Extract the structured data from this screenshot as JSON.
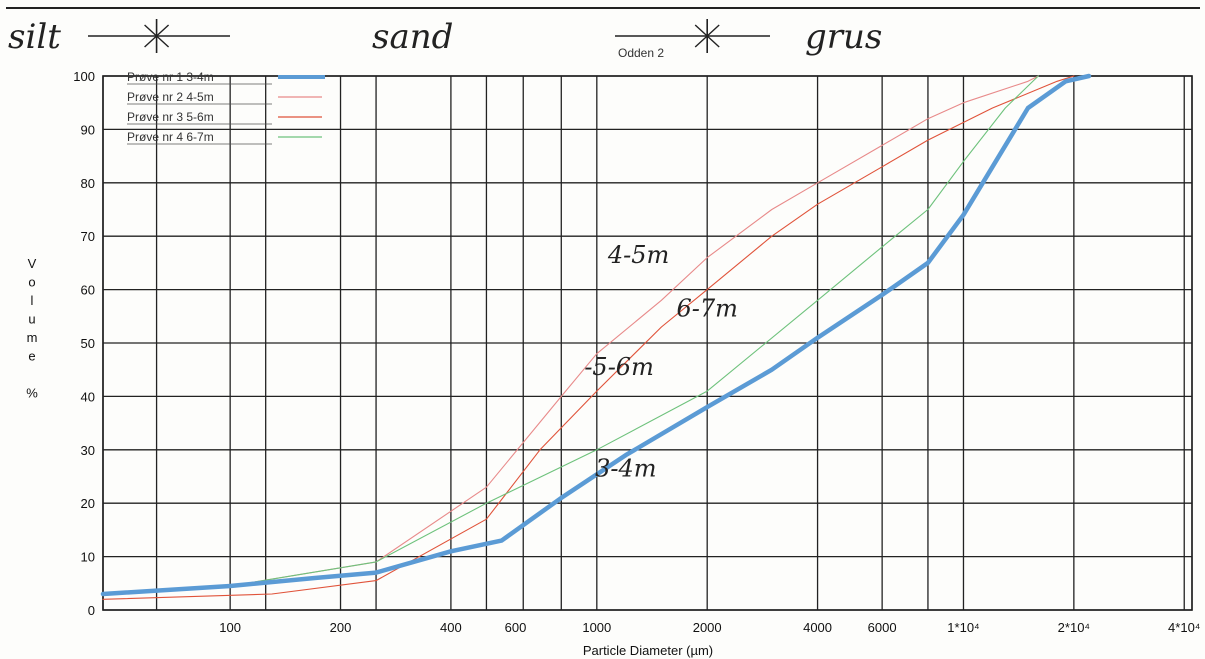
{
  "chart_data": {
    "type": "line",
    "xscale": "log",
    "xlabel": "Particle Diameter (µm)",
    "ylabel_letters": [
      "V",
      "o",
      "l",
      "u",
      "m",
      "e",
      "",
      "%"
    ],
    "xlim": [
      45,
      42000
    ],
    "ylim": [
      0,
      100
    ],
    "x_ticks": [
      {
        "value": 100,
        "label": "100"
      },
      {
        "value": 200,
        "label": "200"
      },
      {
        "value": 400,
        "label": "400"
      },
      {
        "value": 600,
        "label": "600"
      },
      {
        "value": 1000,
        "label": "1000"
      },
      {
        "value": 2000,
        "label": "2000"
      },
      {
        "value": 4000,
        "label": "4000"
      },
      {
        "value": 6000,
        "label": "6000"
      },
      {
        "value": 10000,
        "label": "1*10⁴"
      },
      {
        "value": 20000,
        "label": "2*10⁴"
      },
      {
        "value": 40000,
        "label": "4*10⁴"
      }
    ],
    "x_gridlines": [
      45,
      63,
      100,
      125,
      200,
      250,
      400,
      500,
      630,
      800,
      1000,
      2000,
      4000,
      6000,
      8000,
      10000,
      20000,
      40000
    ],
    "y_ticks": [
      0,
      10,
      20,
      30,
      40,
      50,
      60,
      70,
      80,
      90,
      100
    ],
    "grid": true,
    "legend_position": "top-left",
    "series": [
      {
        "name": "Prøve nr 1 3-4m",
        "color": "#5b9bd5",
        "width": 4.5,
        "x": [
          45,
          100,
          170,
          250,
          400,
          550,
          800,
          1200,
          2000,
          3000,
          4000,
          6000,
          8000,
          10000,
          15000,
          19000,
          22000
        ],
        "y": [
          3,
          4.5,
          6,
          7,
          11,
          13,
          21,
          29,
          38,
          45,
          51,
          59,
          65,
          74,
          94,
          99,
          100
        ]
      },
      {
        "name": "Prøve nr 2 4-5m",
        "color": "#e88a8a",
        "width": 1.1,
        "x": [
          45,
          100,
          250,
          500,
          800,
          1000,
          1500,
          2000,
          3000,
          4000,
          6000,
          8000,
          10000,
          15000,
          16000
        ],
        "y": [
          3,
          4.5,
          9,
          23,
          40,
          48,
          58,
          66,
          75,
          80,
          87,
          92,
          95,
          99,
          100
        ]
      },
      {
        "name": "Prøve nr 3 5-6m",
        "color": "#e0533a",
        "width": 1.1,
        "x": [
          45,
          130,
          250,
          500,
          700,
          1000,
          1500,
          2000,
          3000,
          4000,
          6000,
          8000,
          12000,
          18000,
          20000
        ],
        "y": [
          2,
          3,
          5.5,
          17,
          30,
          41,
          53,
          60,
          70,
          76,
          83,
          88,
          94,
          99,
          100
        ]
      },
      {
        "name": "Prøve nr 4 6-7m",
        "color": "#6ec27c",
        "width": 1.1,
        "x": [
          45,
          100,
          250,
          500,
          1000,
          2000,
          4000,
          6000,
          8000,
          10000,
          13000,
          16000
        ],
        "y": [
          3,
          4.5,
          9,
          20,
          30,
          41,
          58,
          68,
          75,
          84,
          94,
          100
        ]
      }
    ]
  },
  "header": {
    "left": "silt",
    "middle": "sand",
    "right": "grus",
    "site": "Odden 2"
  },
  "annotations": [
    {
      "text": "4-5m",
      "x": 1300,
      "y": 65
    },
    {
      "text": "6-7m",
      "x": 2000,
      "y": 55
    },
    {
      "text": "-5-6m",
      "x": 1150,
      "y": 44
    },
    {
      "text": "3-4m",
      "x": 1200,
      "y": 25
    }
  ]
}
